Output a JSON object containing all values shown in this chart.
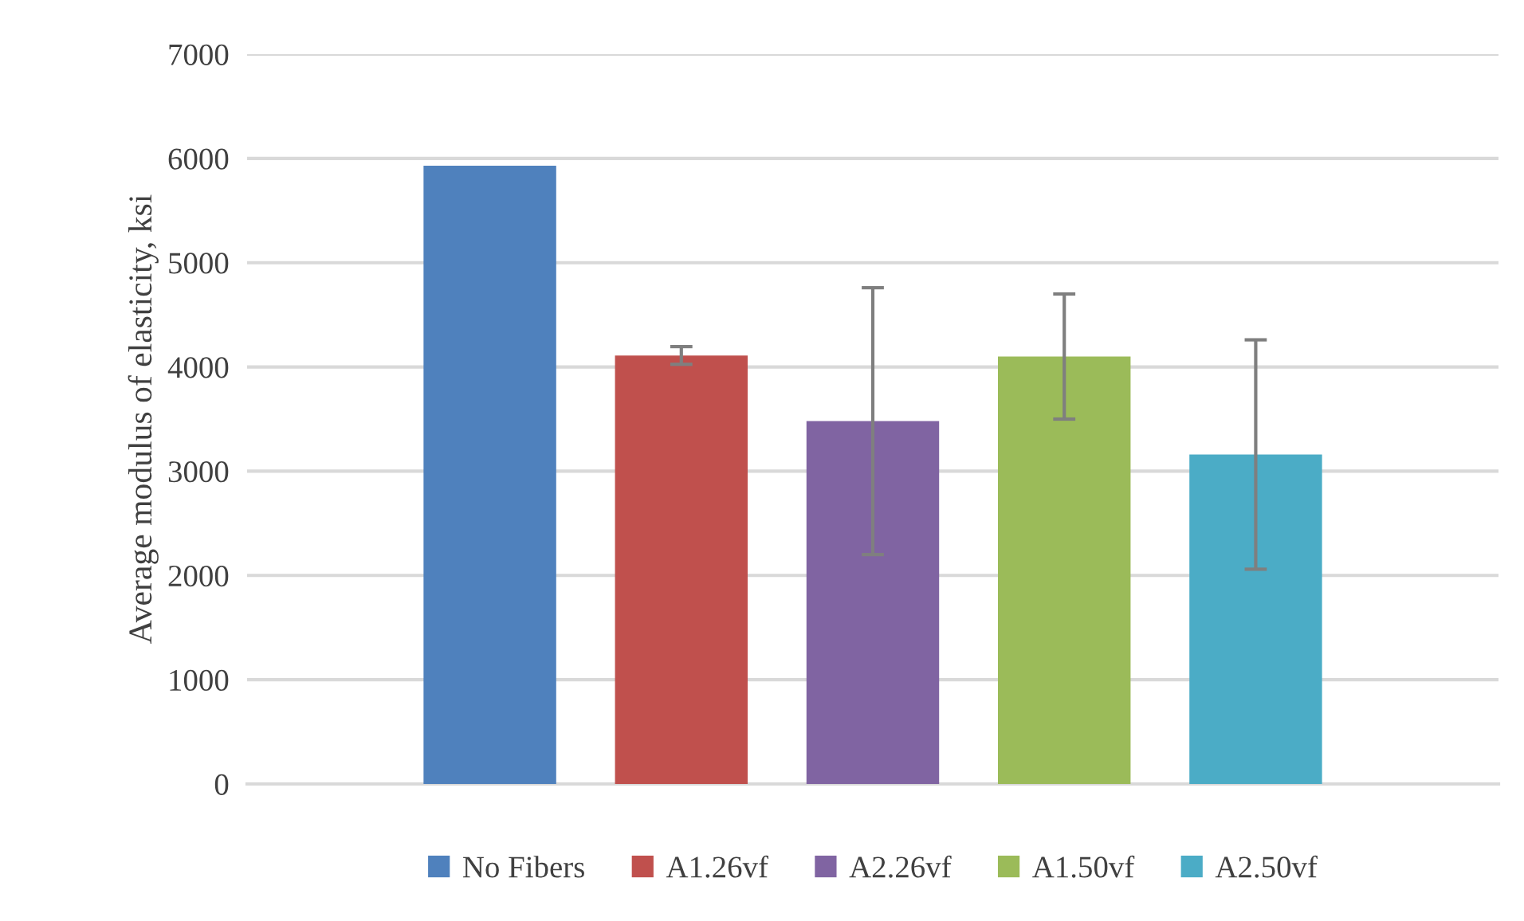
{
  "chart_data": {
    "type": "bar",
    "ylabel": "Average modulus of elasticity, ksi",
    "categories": [
      null
    ],
    "series": [
      {
        "name": "No Fibers",
        "color": "#4f81bd",
        "values": [
          5930
        ]
      },
      {
        "name": "A1.26vf",
        "color": "#c0504d",
        "values": [
          4110
        ],
        "errors": [
          85
        ]
      },
      {
        "name": "A2.26vf",
        "color": "#8064a2",
        "values": [
          3480
        ],
        "errors": [
          1280
        ]
      },
      {
        "name": "A1.50vf",
        "color": "#9bbb59",
        "values": [
          4100
        ],
        "errors": [
          600
        ]
      },
      {
        "name": "A2.50vf",
        "color": "#4bacc6",
        "values": [
          3160
        ],
        "errors": [
          1100
        ]
      }
    ],
    "ylim": [
      0,
      7000
    ],
    "yticks": [
      0,
      1000,
      2000,
      3000,
      4000,
      5000,
      6000,
      7000
    ],
    "grid": "y",
    "legend": "bottom"
  }
}
